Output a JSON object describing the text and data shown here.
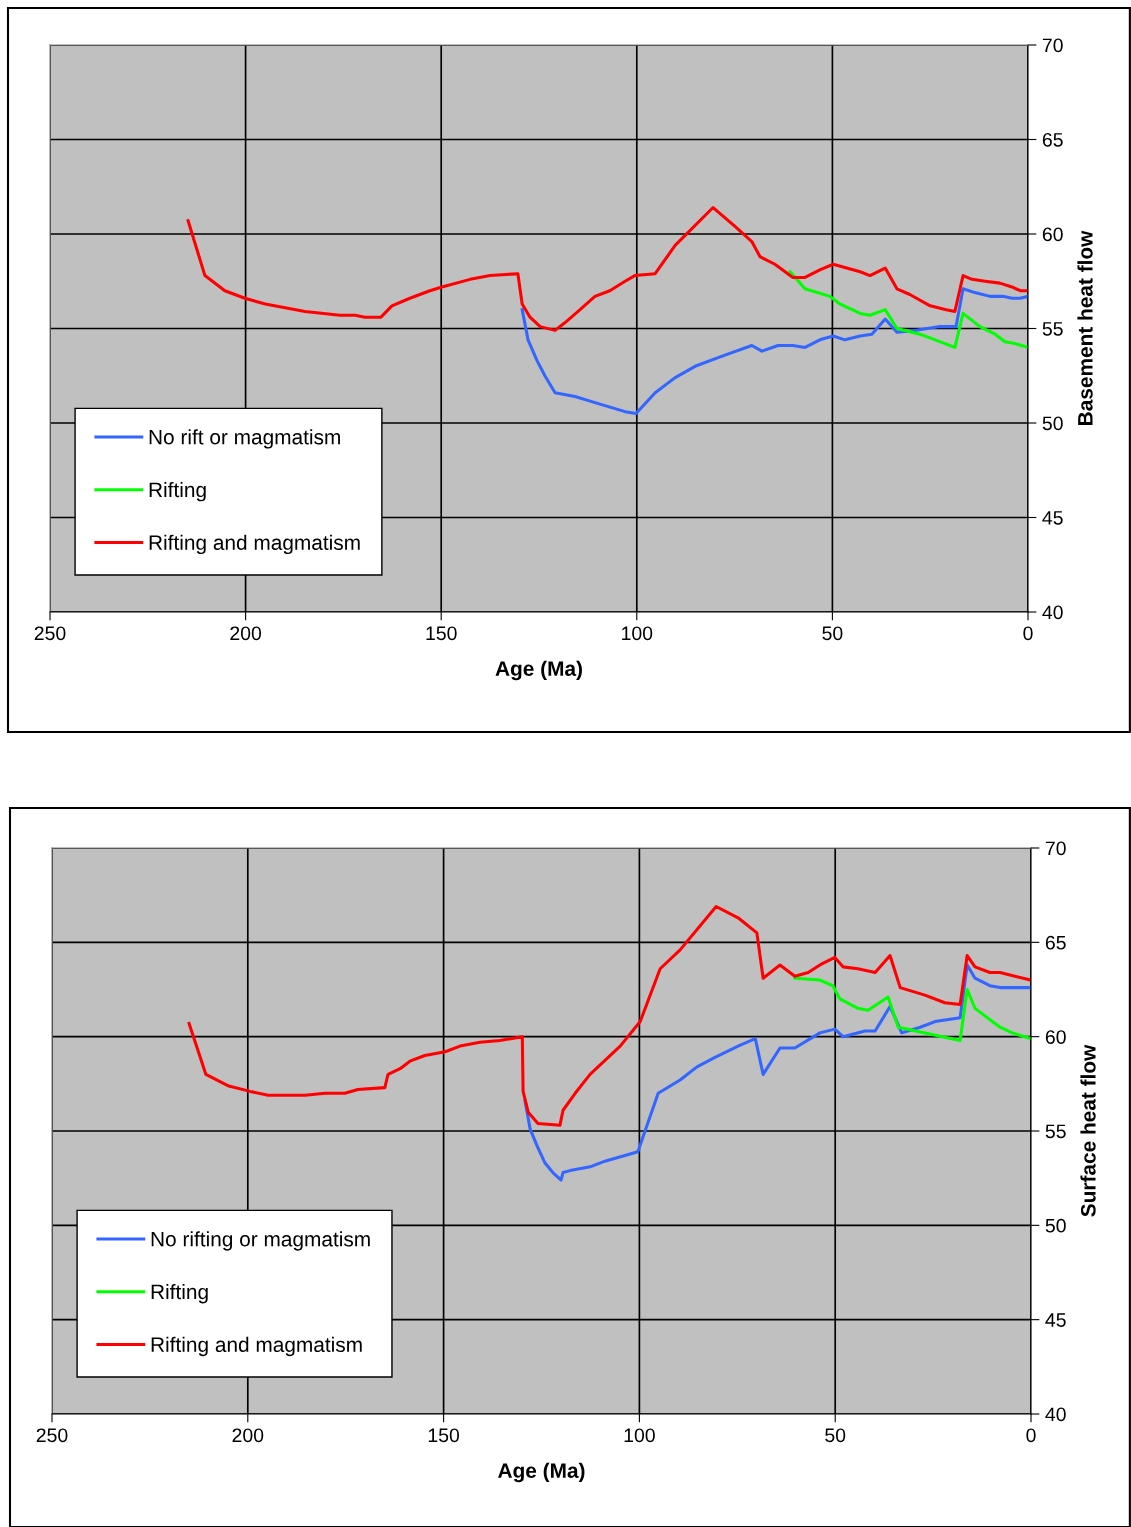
{
  "chart_data": [
    {
      "type": "line",
      "xlabel": "Age (Ma)",
      "ylabel": "Basement heat flow",
      "xlim": [
        250,
        0
      ],
      "xticks": [
        250,
        200,
        150,
        100,
        50,
        0
      ],
      "ylim": [
        40,
        70
      ],
      "yticks": [
        40,
        45,
        50,
        55,
        60,
        65,
        70
      ],
      "grid": true,
      "legend": "bottom left",
      "marker": "none",
      "line_style": "solid",
      "series": [
        {
          "name": "No rift or magmatism",
          "color": "#3366ff",
          "x": [
            129.3,
            127.8,
            125.5,
            123.5,
            120.9,
            115.8,
            109.4,
            103.0,
            100.2,
            95.3,
            90.2,
            85.1,
            78.7,
            70.6,
            68.0,
            63.9,
            60.1,
            57.0,
            53.2,
            49.8,
            46.8,
            42.9,
            39.9,
            36.5,
            33.5,
            28.9,
            22.5,
            18.4,
            16.6,
            13.6,
            9.7,
            6.4,
            4.1,
            2.0,
            0
          ],
          "values": [
            56.0,
            54.4,
            53.3,
            52.5,
            51.6,
            51.4,
            51.0,
            50.6,
            50.5,
            51.6,
            52.4,
            53.0,
            53.5,
            54.1,
            53.8,
            54.1,
            54.1,
            54.0,
            54.4,
            54.6,
            54.4,
            54.6,
            54.7,
            55.5,
            54.8,
            54.9,
            55.1,
            55.1,
            57.1,
            56.9,
            56.7,
            56.7,
            56.6,
            56.6,
            56.7
          ]
        },
        {
          "name": "Rifting",
          "color": "#00ff00",
          "x": [
            60.8,
            57.0,
            50.6,
            48.1,
            42.9,
            40.4,
            36.5,
            33.5,
            27.6,
            18.7,
            16.6,
            12.3,
            8.4,
            5.9,
            3.3,
            0
          ],
          "values": [
            58.0,
            57.1,
            56.7,
            56.3,
            55.8,
            55.7,
            56.0,
            55.0,
            54.7,
            54.0,
            55.8,
            55.1,
            54.7,
            54.3,
            54.2,
            54.0
          ]
        },
        {
          "name": "Rifting and magmatism",
          "color": "#ff0000",
          "x": [
            214.7,
            210.4,
            205.3,
            200.2,
            195.0,
            184.8,
            175.9,
            172.0,
            169.5,
            165.4,
            162.6,
            158.0,
            152.9,
            149.8,
            142.6,
            137.5,
            130.4,
            129.3,
            127.3,
            124.7,
            120.9,
            118.4,
            114.5,
            110.7,
            106.9,
            103.0,
            100.5,
            95.3,
            90.2,
            80.5,
            74.9,
            70.6,
            68.5,
            64.7,
            60.1,
            57.0,
            53.2,
            49.8,
            42.9,
            40.4,
            36.5,
            33.5,
            30.2,
            25.0,
            21.2,
            18.7,
            16.6,
            14.3,
            11.0,
            7.2,
            4.1,
            2.0,
            0
          ],
          "values": [
            60.7,
            57.8,
            57.0,
            56.6,
            56.3,
            55.9,
            55.7,
            55.7,
            55.6,
            55.6,
            56.2,
            56.6,
            57.0,
            57.2,
            57.6,
            57.8,
            57.9,
            56.3,
            55.6,
            55.1,
            54.9,
            55.3,
            56.0,
            56.7,
            57.0,
            57.5,
            57.8,
            57.9,
            59.4,
            61.4,
            60.4,
            59.6,
            58.8,
            58.4,
            57.7,
            57.7,
            58.1,
            58.4,
            58.0,
            57.8,
            58.2,
            57.1,
            56.8,
            56.2,
            56.0,
            55.9,
            57.8,
            57.6,
            57.5,
            57.4,
            57.2,
            57.0,
            57.0
          ]
        }
      ]
    },
    {
      "type": "line",
      "xlabel": "Age (Ma)",
      "ylabel": "Surface heat flow",
      "xlim": [
        250,
        0
      ],
      "xticks": [
        250,
        200,
        150,
        100,
        50,
        0
      ],
      "ylim": [
        40,
        70
      ],
      "yticks": [
        40,
        45,
        50,
        55,
        60,
        65,
        70
      ],
      "grid": true,
      "legend": "bottom left",
      "marker": "none",
      "line_style": "solid",
      "series": [
        {
          "name": "No rifting or magmatism",
          "color": "#3366ff",
          "x": [
            129.2,
            127.9,
            126.1,
            124.1,
            122.1,
            120.0,
            119.5,
            117.7,
            112.6,
            108.8,
            103.7,
            100.4,
            95.2,
            89.6,
            85.3,
            80.7,
            74.8,
            70.4,
            68.4,
            64.1,
            60.3,
            53.9,
            50.1,
            48.0,
            42.4,
            39.8,
            36.0,
            33.0,
            28.3,
            24.5,
            18.1,
            16.3,
            14.3,
            10.5,
            7.9,
            0
          ],
          "values": [
            56.6,
            55.1,
            54.2,
            53.3,
            52.8,
            52.4,
            52.8,
            52.9,
            53.1,
            53.4,
            53.7,
            53.9,
            57.0,
            57.7,
            58.4,
            58.9,
            59.5,
            59.9,
            58.0,
            59.4,
            59.4,
            60.2,
            60.4,
            60.0,
            60.3,
            60.3,
            61.6,
            60.2,
            60.5,
            60.8,
            61.0,
            63.8,
            63.1,
            62.7,
            62.6,
            62.6
          ]
        },
        {
          "name": "Rifting",
          "color": "#00ff00",
          "x": [
            60.3,
            53.9,
            50.6,
            48.8,
            44.2,
            41.6,
            36.5,
            33.9,
            27.1,
            18.1,
            16.3,
            14.3,
            7.9,
            4.8,
            0
          ],
          "values": [
            63.1,
            63.0,
            62.7,
            62.0,
            61.5,
            61.4,
            62.1,
            60.5,
            60.2,
            59.8,
            62.5,
            61.5,
            60.5,
            60.2,
            59.9
          ]
        },
        {
          "name": "Rifting and magmatism",
          "color": "#ff0000",
          "x": [
            215.0,
            210.7,
            205.1,
            199.4,
            194.8,
            185.4,
            180.3,
            175.2,
            171.9,
            165.0,
            164.2,
            161.1,
            158.6,
            154.8,
            149.6,
            145.8,
            140.7,
            135.6,
            129.9,
            129.7,
            128.4,
            125.9,
            120.3,
            119.5,
            116.4,
            112.6,
            104.9,
            99.8,
            94.7,
            89.6,
            80.4,
            74.8,
            70.0,
            68.4,
            64.1,
            60.3,
            56.9,
            53.9,
            50.1,
            48.0,
            44.2,
            39.8,
            36.0,
            33.4,
            27.1,
            22.0,
            18.1,
            16.3,
            14.3,
            10.5,
            7.9,
            4.1,
            0
          ],
          "values": [
            60.7,
            58.0,
            57.4,
            57.1,
            56.9,
            56.9,
            57.0,
            57.0,
            57.2,
            57.3,
            58.0,
            58.3,
            58.7,
            59.0,
            59.2,
            59.5,
            59.7,
            59.8,
            60.0,
            57.1,
            56.0,
            55.4,
            55.3,
            56.1,
            57.0,
            58.0,
            59.5,
            60.8,
            63.6,
            64.6,
            66.9,
            66.3,
            65.5,
            63.1,
            63.8,
            63.2,
            63.4,
            63.8,
            64.2,
            63.7,
            63.6,
            63.4,
            64.3,
            62.6,
            62.2,
            61.8,
            61.7,
            64.3,
            63.7,
            63.4,
            63.4,
            63.2,
            63.0
          ]
        }
      ]
    }
  ]
}
